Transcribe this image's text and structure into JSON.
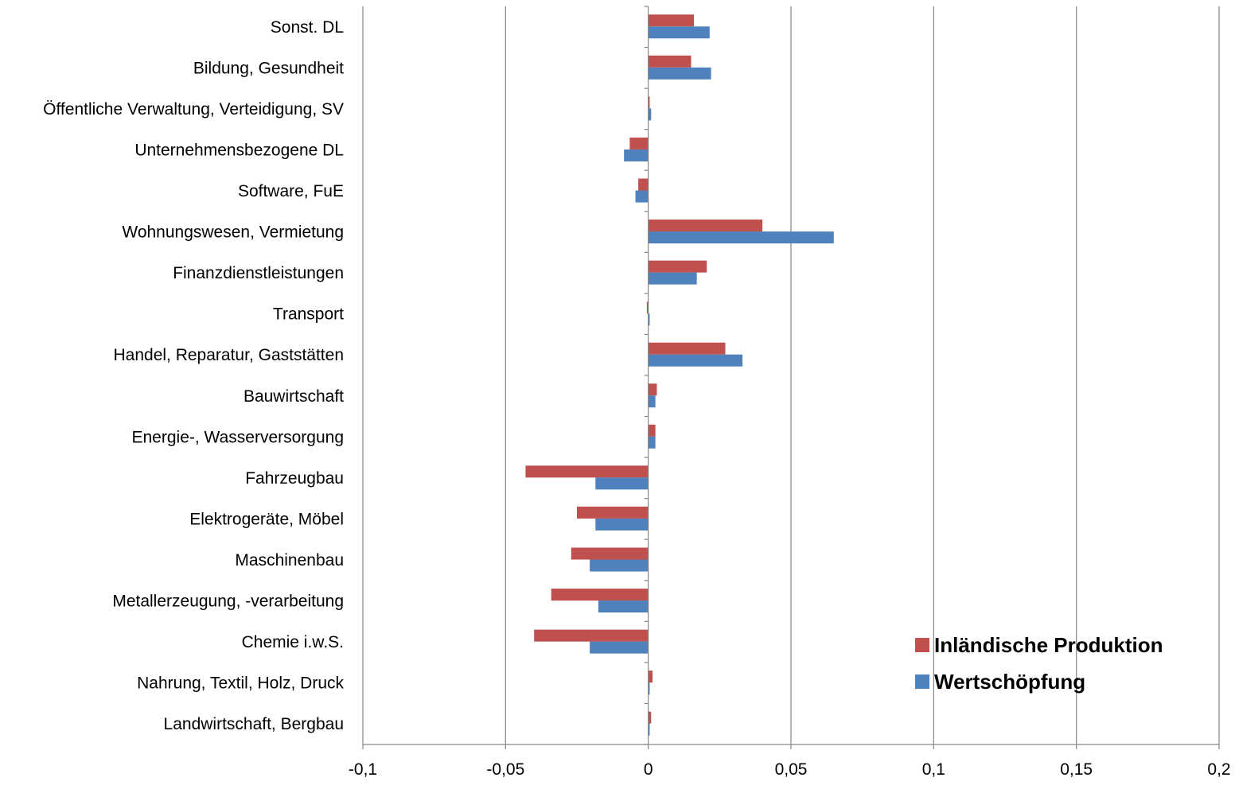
{
  "chart_data": {
    "type": "bar",
    "orientation": "horizontal",
    "title": "",
    "xlabel": "",
    "ylabel": "",
    "categories": [
      "Sonst. DL",
      "Bildung, Gesundheit",
      "Öffentliche Verwaltung, Verteidigung, SV",
      "Unternehmensbezogene DL",
      "Software, FuE",
      "Wohnungswesen, Vermietung",
      "Finanzdienstleistungen",
      "Transport",
      "Handel, Reparatur, Gaststätten",
      "Bauwirtschaft",
      "Energie-, Wasserversorgung",
      "Fahrzeugbau",
      "Elektrogeräte, Möbel",
      "Maschinenbau",
      "Metallerzeugung, -verarbeitung",
      "Chemie i.w.S.",
      "Nahrung, Textil, Holz, Druck",
      "Landwirtschaft, Bergbau"
    ],
    "series": [
      {
        "name": "Inländische Produktion",
        "color": "#C0504D",
        "values": [
          0.016,
          0.015,
          0.0005,
          -0.0065,
          -0.0035,
          0.04,
          0.0205,
          -0.0005,
          0.027,
          0.003,
          0.0025,
          -0.043,
          -0.025,
          -0.027,
          -0.034,
          -0.04,
          0.0015,
          0.001
        ]
      },
      {
        "name": "Wertschöpfung",
        "color": "#4F81BD",
        "values": [
          0.0215,
          0.022,
          0.001,
          -0.0085,
          -0.0045,
          0.065,
          0.017,
          0.0005,
          0.033,
          0.0025,
          0.0025,
          -0.0185,
          -0.0185,
          -0.0205,
          -0.0175,
          -0.0205,
          0.0005,
          0.0005
        ]
      }
    ],
    "xlim": [
      -0.1,
      0.2
    ],
    "xticks": [
      -0.1,
      -0.05,
      0,
      0.05,
      0.1,
      0.15,
      0.2
    ],
    "xtick_labels": [
      "-0,1",
      "-0,05",
      "0",
      "0,05",
      "0,1",
      "0,15",
      "0,2"
    ],
    "grid": true,
    "legend_position": "bottom-right"
  }
}
